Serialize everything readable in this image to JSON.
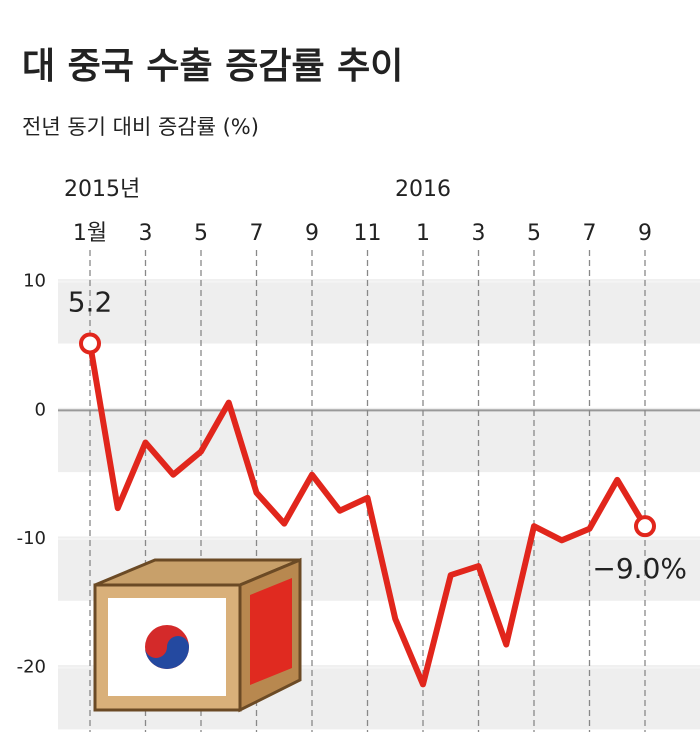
{
  "chart_data": {
    "type": "line",
    "title": "대 중국 수출 증감률 추이",
    "subtitle": "전년 동기 대비 증감률 (%)",
    "year_labels": [
      "2015년",
      null,
      null,
      null,
      null,
      null,
      null,
      null,
      null,
      null,
      null,
      null,
      "2016",
      null,
      null,
      null,
      null,
      null,
      null,
      null,
      null
    ],
    "categories": [
      "1월",
      null,
      "3",
      null,
      "5",
      null,
      "7",
      null,
      "9",
      null,
      "11",
      null,
      "1",
      null,
      "3",
      null,
      "5",
      null,
      "7",
      null,
      "9"
    ],
    "values": [
      5.2,
      -7.6,
      -2.5,
      -5.0,
      -3.2,
      0.6,
      -6.4,
      -8.8,
      -5.0,
      -7.8,
      -6.8,
      -16.2,
      -21.3,
      -12.8,
      -12.1,
      -18.2,
      -9.0,
      -10.1,
      -9.2,
      -5.4,
      -9.0
    ],
    "value_labels": [
      "5.2",
      null,
      null,
      null,
      null,
      null,
      null,
      null,
      null,
      null,
      null,
      null,
      null,
      null,
      null,
      null,
      null,
      null,
      null,
      null,
      "−9.0%"
    ],
    "color": "#e1261c",
    "ylim": [
      -25,
      11.3
    ],
    "yticks": [
      10,
      0,
      -10,
      -20
    ]
  }
}
